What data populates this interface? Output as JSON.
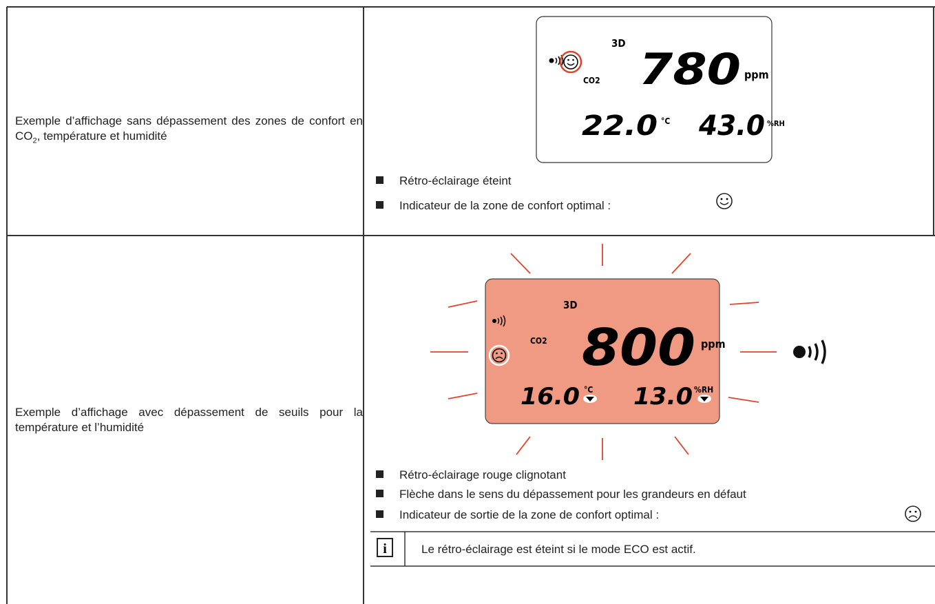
{
  "rows": [
    {
      "description": {
        "before": "Exemple d’affichage sans dépassement des zones de confort en  ",
        "chem": "CO",
        "sub": "2",
        "after": ", température et humidité"
      },
      "display": {
        "mode": "3D",
        "co2_label": "CO2",
        "co2": "780",
        "co2_unit": "ppm",
        "temp": "22.0",
        "temp_unit": "°C",
        "hum": "43.0",
        "hum_unit": "%RH"
      },
      "bullets": [
        "Rétro-éclairage éteint",
        "Indicateur de la zone de confort optimal :"
      ]
    },
    {
      "description": {
        "text": "Exemple d’affichage avec dépassement de seuils pour la température et l’humidité"
      },
      "display": {
        "mode": "3D",
        "co2_label": "CO2",
        "co2": "800",
        "co2_unit": "ppm",
        "temp": "16.0",
        "temp_unit": "°C",
        "hum": "13.0",
        "hum_unit": "%RH"
      },
      "bullets": [
        "Rétro-éclairage rouge clignotant",
        "Flèche dans le sens du dépassement pour les grandeurs en défaut",
        "Indicateur de sortie de la zone de confort optimal :"
      ]
    }
  ],
  "note": "Le rétro-éclairage est éteint si le mode ECO est actif."
}
